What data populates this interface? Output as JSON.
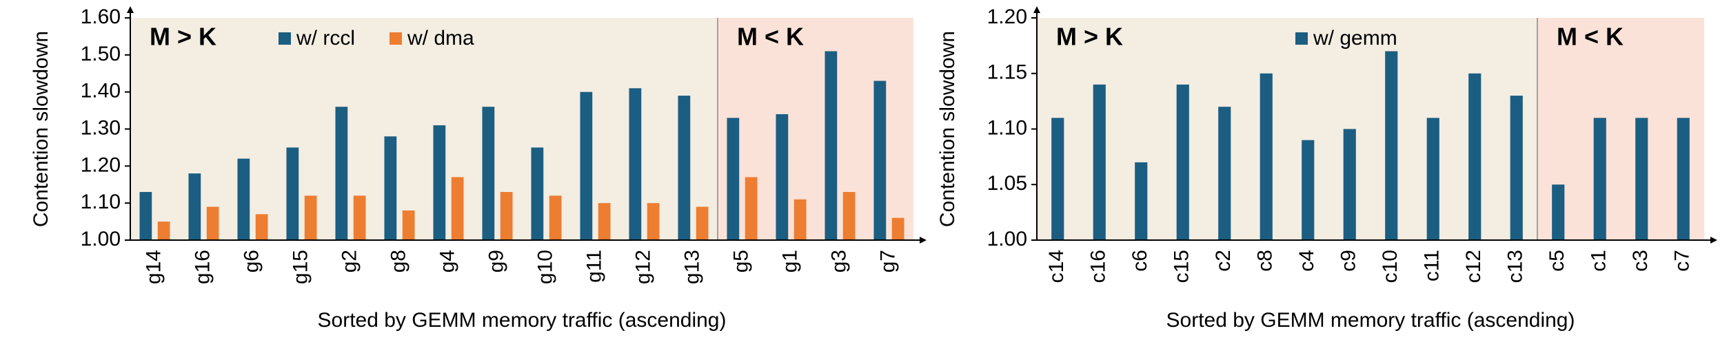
{
  "chart_data": [
    {
      "type": "bar",
      "y_label": "Contention slowdown",
      "x_label": "Sorted by GEMM memory traffic (ascending)",
      "categories": [
        "g14",
        "g16",
        "g6",
        "g15",
        "g2",
        "g8",
        "g4",
        "g9",
        "g10",
        "g11",
        "g12",
        "g13",
        "g5",
        "g1",
        "g3",
        "g7"
      ],
      "series": [
        {
          "name": "w/ rccl",
          "color": "#1b5e82",
          "values": [
            1.13,
            1.18,
            1.22,
            1.25,
            1.36,
            1.28,
            1.31,
            1.36,
            1.25,
            1.4,
            1.41,
            1.39,
            1.33,
            1.34,
            1.51,
            1.43
          ]
        },
        {
          "name": "w/ dma",
          "color": "#ed7d31",
          "values": [
            1.05,
            1.09,
            1.07,
            1.12,
            1.12,
            1.08,
            1.17,
            1.13,
            1.12,
            1.1,
            1.1,
            1.09,
            1.17,
            1.11,
            1.13,
            1.06
          ]
        }
      ],
      "ylim": [
        1.0,
        1.6
      ],
      "yticks": [
        {
          "value": 1.0,
          "label": "1.00"
        },
        {
          "value": 1.1,
          "label": "1.10"
        },
        {
          "value": 1.2,
          "label": "1.20"
        },
        {
          "value": 1.3,
          "label": "1.30"
        },
        {
          "value": 1.4,
          "label": "1.40"
        },
        {
          "value": 1.5,
          "label": "1.50"
        },
        {
          "value": 1.6,
          "label": "1.60"
        }
      ],
      "regions": [
        {
          "label": "M > K",
          "from": "g14",
          "to": "g13",
          "color": "#f3ede2"
        },
        {
          "label": "M < K",
          "from": "g5",
          "to": "g7",
          "color": "#fbe2d8"
        }
      ]
    },
    {
      "type": "bar",
      "y_label": "Contention slowdown",
      "x_label": "Sorted by GEMM memory traffic (ascending)",
      "categories": [
        "c14",
        "c16",
        "c6",
        "c15",
        "c2",
        "c8",
        "c4",
        "c9",
        "c10",
        "c11",
        "c12",
        "c13",
        "c5",
        "c1",
        "c3",
        "c7"
      ],
      "series": [
        {
          "name": "w/ gemm",
          "color": "#1b5e82",
          "values": [
            1.11,
            1.14,
            1.07,
            1.14,
            1.12,
            1.15,
            1.09,
            1.1,
            1.17,
            1.11,
            1.15,
            1.13,
            1.05,
            1.11,
            1.11,
            1.11
          ]
        }
      ],
      "ylim": [
        1.0,
        1.2
      ],
      "yticks": [
        {
          "value": 1.0,
          "label": "1.00"
        },
        {
          "value": 1.05,
          "label": "1.05"
        },
        {
          "value": 1.1,
          "label": "1.10"
        },
        {
          "value": 1.15,
          "label": "1.15"
        },
        {
          "value": 1.2,
          "label": "1.20"
        }
      ],
      "regions": [
        {
          "label": "M > K",
          "from": "c14",
          "to": "c13",
          "color": "#f3ede2"
        },
        {
          "label": "M < K",
          "from": "c5",
          "to": "c7",
          "color": "#fbe2d8"
        }
      ]
    }
  ]
}
